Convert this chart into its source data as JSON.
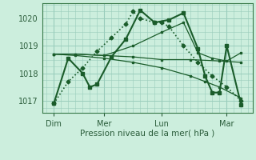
{
  "xlabel": "Pression niveau de la mer( hPa )",
  "bg_color": "#cceedd",
  "grid_color": "#99ccbb",
  "line_color": "#1a5c2a",
  "yticks": [
    1017,
    1018,
    1019,
    1020
  ],
  "ylim": [
    1016.55,
    1020.55
  ],
  "xlim": [
    -0.3,
    14.3
  ],
  "xtick_labels": [
    "Dim",
    "Mer",
    "Lun",
    "Mar"
  ],
  "xtick_positions": [
    0.5,
    4.0,
    8.0,
    12.5
  ],
  "vline_positions": [
    0.5,
    4.0,
    8.0,
    12.5
  ],
  "series": [
    {
      "x": [
        0.5,
        1.5,
        2.5,
        3.5,
        4.5,
        5.5,
        6.0,
        6.5,
        7.5,
        8.0,
        8.5,
        9.5,
        10.5,
        11.5,
        12.5,
        13.5
      ],
      "y": [
        1016.9,
        1017.7,
        1018.2,
        1018.8,
        1019.3,
        1019.8,
        1020.25,
        1020.0,
        1019.85,
        1019.85,
        1019.7,
        1019.0,
        1018.4,
        1017.9,
        1017.5,
        1017.0
      ],
      "style": "dotted",
      "marker": "D",
      "markersize": 2.5,
      "linewidth": 1.2
    },
    {
      "x": [
        0.5,
        1.5,
        2.5,
        3.0,
        3.5,
        4.5,
        5.5,
        6.5,
        7.5,
        8.5,
        9.5,
        10.5,
        11.0,
        11.5,
        12.0,
        12.5,
        13.5
      ],
      "y": [
        1016.9,
        1018.55,
        1018.0,
        1017.5,
        1017.6,
        1018.6,
        1019.25,
        1020.3,
        1019.85,
        1019.95,
        1020.2,
        1018.9,
        1017.9,
        1017.3,
        1017.3,
        1019.0,
        1016.85
      ],
      "style": "-",
      "marker": "s",
      "markersize": 3,
      "linewidth": 1.5
    },
    {
      "x": [
        0.5,
        2.0,
        4.0,
        6.0,
        8.0,
        10.0,
        12.0,
        13.5
      ],
      "y": [
        1018.7,
        1018.7,
        1018.65,
        1018.6,
        1018.5,
        1018.5,
        1018.45,
        1018.4
      ],
      "style": "-",
      "marker": "s",
      "markersize": 2,
      "linewidth": 0.9
    },
    {
      "x": [
        0.5,
        2.0,
        4.0,
        6.0,
        8.0,
        10.0,
        11.0,
        12.0,
        13.5
      ],
      "y": [
        1018.7,
        1018.65,
        1018.55,
        1018.4,
        1018.2,
        1017.9,
        1017.7,
        1017.5,
        1017.1
      ],
      "style": "-",
      "marker": "s",
      "markersize": 2,
      "linewidth": 0.9
    },
    {
      "x": [
        0.5,
        2.0,
        4.0,
        6.0,
        8.0,
        9.5,
        10.5,
        11.5,
        12.5,
        13.5
      ],
      "y": [
        1018.7,
        1018.7,
        1018.65,
        1019.0,
        1019.5,
        1019.85,
        1018.75,
        1018.55,
        1018.45,
        1018.75
      ],
      "style": "-",
      "marker": "s",
      "markersize": 2,
      "linewidth": 0.9
    }
  ]
}
